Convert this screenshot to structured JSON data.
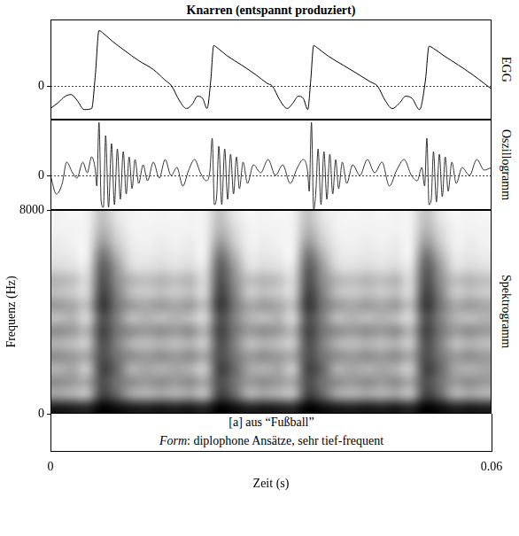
{
  "chart_data": [
    {
      "type": "line",
      "title": "Knarren (entspannt produziert)",
      "panel_label": "EGG",
      "x": [
        0.0,
        0.001,
        0.002,
        0.0028,
        0.0036,
        0.0046,
        0.0056,
        0.0061,
        0.0066,
        0.0072,
        0.0085,
        0.01,
        0.012,
        0.014,
        0.0155,
        0.0165,
        0.0175,
        0.0185,
        0.0193,
        0.02,
        0.0207,
        0.0213,
        0.0218,
        0.0222,
        0.0228,
        0.024,
        0.026,
        0.028,
        0.0295,
        0.0302,
        0.0312,
        0.0322,
        0.033,
        0.0337,
        0.0344,
        0.035,
        0.0354,
        0.0358,
        0.0364,
        0.0378,
        0.0398,
        0.0418,
        0.0435,
        0.0445,
        0.0455,
        0.0465,
        0.0475,
        0.0483,
        0.0492,
        0.0502,
        0.051,
        0.0515,
        0.0521,
        0.0535,
        0.0555,
        0.0575,
        0.059,
        0.06
      ],
      "values": [
        -0.4,
        -0.3,
        -0.18,
        -0.15,
        -0.25,
        -0.42,
        -0.4,
        0.2,
        1.0,
        0.95,
        0.8,
        0.65,
        0.46,
        0.3,
        0.12,
        0.0,
        -0.25,
        -0.4,
        -0.32,
        -0.18,
        -0.22,
        -0.4,
        0.1,
        0.73,
        0.68,
        0.55,
        0.38,
        0.2,
        0.05,
        0.0,
        -0.25,
        -0.4,
        -0.3,
        -0.18,
        -0.22,
        -0.42,
        0.1,
        0.73,
        0.68,
        0.54,
        0.38,
        0.22,
        0.08,
        0.0,
        -0.25,
        -0.4,
        -0.3,
        -0.18,
        -0.22,
        -0.42,
        0.1,
        0.72,
        0.68,
        0.55,
        0.38,
        0.2,
        0.05,
        -0.05
      ],
      "xlim": [
        0,
        0.06
      ],
      "ylim": [
        -0.6,
        1.2
      ],
      "yticks": [
        0
      ],
      "grid": true,
      "tick_labels": "y",
      "color": "#000000",
      "line_style": "solid"
    },
    {
      "type": "line",
      "panel_label": "Oszillogramm",
      "x": [
        0.0,
        0.0008,
        0.0016,
        0.0022,
        0.003,
        0.0036,
        0.0044,
        0.005,
        0.0056,
        0.0061,
        0.0063,
        0.0066,
        0.0069,
        0.0072,
        0.0075,
        0.0079,
        0.0083,
        0.0087,
        0.0091,
        0.0095,
        0.0099,
        0.0103,
        0.0107,
        0.0111,
        0.0115,
        0.012,
        0.0126,
        0.0132,
        0.014,
        0.0148,
        0.0156,
        0.0164,
        0.0172,
        0.018,
        0.0188,
        0.0196,
        0.0204,
        0.0212,
        0.0217,
        0.022,
        0.0223,
        0.0226,
        0.0229,
        0.0233,
        0.0237,
        0.0241,
        0.0245,
        0.0249,
        0.0253,
        0.0257,
        0.0262,
        0.0268,
        0.0276,
        0.0286,
        0.0296,
        0.0306,
        0.0316,
        0.0326,
        0.0336,
        0.0344,
        0.035,
        0.0352,
        0.0355,
        0.0358,
        0.0361,
        0.0364,
        0.0368,
        0.0372,
        0.0376,
        0.038,
        0.0384,
        0.0388,
        0.0392,
        0.0397,
        0.0403,
        0.0411,
        0.0421,
        0.0431,
        0.0441,
        0.0451,
        0.0461,
        0.0471,
        0.0481,
        0.0491,
        0.0499,
        0.0505,
        0.0509,
        0.0512,
        0.0515,
        0.0518,
        0.0521,
        0.0525,
        0.0529,
        0.0533,
        0.0537,
        0.0541,
        0.0546,
        0.0552,
        0.056,
        0.057,
        0.058,
        0.059,
        0.06
      ],
      "values": [
        0.0,
        -0.35,
        -0.15,
        0.25,
        0.05,
        -0.05,
        0.25,
        0.05,
        0.35,
        0.1,
        -0.2,
        1.0,
        -0.5,
        -0.6,
        0.75,
        -0.6,
        0.6,
        -0.55,
        0.5,
        -0.45,
        0.45,
        -0.35,
        0.35,
        -0.25,
        0.3,
        -0.15,
        0.2,
        -0.1,
        0.25,
        -0.05,
        0.3,
        0.0,
        0.15,
        -0.2,
        0.1,
        0.3,
        0.05,
        -0.1,
        0.1,
        0.7,
        -0.55,
        -0.4,
        0.55,
        -0.55,
        0.5,
        -0.45,
        0.4,
        -0.35,
        0.35,
        -0.25,
        0.25,
        -0.15,
        0.2,
        0.05,
        0.3,
        0.0,
        0.2,
        -0.15,
        0.15,
        0.3,
        0.05,
        -0.3,
        1.0,
        -0.65,
        -0.3,
        0.5,
        -0.55,
        0.45,
        -0.45,
        0.4,
        -0.35,
        0.3,
        -0.25,
        0.25,
        -0.15,
        0.2,
        0.0,
        0.3,
        0.05,
        0.25,
        -0.2,
        0.1,
        0.3,
        0.0,
        -0.1,
        0.15,
        -0.2,
        0.7,
        -0.55,
        -0.45,
        0.45,
        -0.5,
        0.4,
        -0.4,
        0.35,
        -0.3,
        0.25,
        -0.15,
        0.15,
        0.0,
        0.3,
        0.1,
        0.15
      ],
      "xlim": [
        0,
        0.06
      ],
      "ylim": [
        -0.65,
        1.05
      ],
      "yticks": [
        0
      ],
      "grid": true,
      "tick_labels": "y",
      "color": "#333333",
      "line_style": "solid"
    },
    {
      "type": "heatmap",
      "panel_label": "Spektrogramm",
      "y_label": "Frequenz (Hz)",
      "x_label": "Zeit (s)",
      "xlim": [
        0,
        0.06
      ],
      "xticks": [
        0,
        0.06
      ],
      "ylim": [
        0,
        8000
      ],
      "yticks": [
        0,
        8000
      ],
      "grid": false,
      "zlim": [
        0,
        1
      ],
      "cells": [
        [
          0.9,
          0.35,
          0.45,
          0.3,
          0.45,
          0.3,
          0.45,
          0.25,
          0.4,
          0.25,
          0.3,
          0.15,
          0.1,
          0.08,
          0.05,
          0.05
        ],
        [
          0.88,
          0.3,
          0.4,
          0.35,
          0.4,
          0.25,
          0.4,
          0.3,
          0.35,
          0.2,
          0.25,
          0.12,
          0.08,
          0.05,
          0.05,
          0.03
        ],
        [
          0.85,
          0.25,
          0.35,
          0.2,
          0.35,
          0.2,
          0.3,
          0.15,
          0.25,
          0.15,
          0.15,
          0.1,
          0.05,
          0.05,
          0.05,
          0.05
        ],
        [
          1.0,
          0.75,
          0.7,
          0.75,
          0.7,
          0.7,
          0.75,
          0.7,
          0.8,
          0.75,
          0.7,
          0.65,
          0.55,
          0.4,
          0.3,
          0.25
        ],
        [
          0.95,
          0.6,
          0.55,
          0.6,
          0.55,
          0.5,
          0.55,
          0.5,
          0.55,
          0.5,
          0.45,
          0.4,
          0.3,
          0.2,
          0.15,
          0.1
        ],
        [
          0.9,
          0.35,
          0.45,
          0.3,
          0.45,
          0.3,
          0.45,
          0.25,
          0.4,
          0.25,
          0.3,
          0.15,
          0.1,
          0.08,
          0.05,
          0.05
        ],
        [
          0.88,
          0.3,
          0.4,
          0.35,
          0.4,
          0.25,
          0.4,
          0.3,
          0.35,
          0.2,
          0.25,
          0.12,
          0.08,
          0.05,
          0.05,
          0.03
        ],
        [
          0.9,
          0.35,
          0.45,
          0.3,
          0.45,
          0.3,
          0.45,
          0.25,
          0.4,
          0.25,
          0.3,
          0.15,
          0.1,
          0.08,
          0.05,
          0.05
        ],
        [
          0.88,
          0.3,
          0.4,
          0.35,
          0.4,
          0.25,
          0.4,
          0.3,
          0.35,
          0.2,
          0.25,
          0.12,
          0.08,
          0.05,
          0.05,
          0.03
        ],
        [
          0.9,
          0.35,
          0.45,
          0.3,
          0.45,
          0.3,
          0.45,
          0.25,
          0.4,
          0.25,
          0.3,
          0.15,
          0.1,
          0.08,
          0.05,
          0.05
        ],
        [
          0.85,
          0.25,
          0.35,
          0.2,
          0.35,
          0.2,
          0.3,
          0.15,
          0.25,
          0.15,
          0.15,
          0.1,
          0.05,
          0.05,
          0.05,
          0.05
        ],
        [
          1.0,
          0.75,
          0.7,
          0.75,
          0.7,
          0.7,
          0.75,
          0.7,
          0.8,
          0.75,
          0.7,
          0.65,
          0.55,
          0.4,
          0.3,
          0.25
        ],
        [
          0.95,
          0.6,
          0.55,
          0.6,
          0.55,
          0.5,
          0.55,
          0.5,
          0.55,
          0.5,
          0.45,
          0.4,
          0.3,
          0.2,
          0.15,
          0.1
        ],
        [
          0.88,
          0.3,
          0.4,
          0.35,
          0.4,
          0.25,
          0.4,
          0.3,
          0.35,
          0.2,
          0.25,
          0.12,
          0.08,
          0.05,
          0.05,
          0.03
        ],
        [
          0.9,
          0.35,
          0.45,
          0.3,
          0.45,
          0.3,
          0.45,
          0.25,
          0.4,
          0.25,
          0.3,
          0.15,
          0.1,
          0.08,
          0.05,
          0.05
        ],
        [
          0.88,
          0.3,
          0.4,
          0.35,
          0.4,
          0.25,
          0.4,
          0.3,
          0.35,
          0.2,
          0.25,
          0.12,
          0.08,
          0.05,
          0.05,
          0.03
        ],
        [
          0.85,
          0.25,
          0.35,
          0.2,
          0.35,
          0.2,
          0.3,
          0.15,
          0.25,
          0.15,
          0.15,
          0.1,
          0.05,
          0.05,
          0.05,
          0.05
        ],
        [
          1.0,
          0.75,
          0.7,
          0.75,
          0.7,
          0.7,
          0.75,
          0.7,
          0.8,
          0.75,
          0.7,
          0.65,
          0.55,
          0.4,
          0.3,
          0.25
        ],
        [
          0.95,
          0.6,
          0.55,
          0.6,
          0.55,
          0.5,
          0.55,
          0.5,
          0.55,
          0.5,
          0.45,
          0.4,
          0.3,
          0.2,
          0.15,
          0.1
        ],
        [
          0.9,
          0.35,
          0.45,
          0.3,
          0.45,
          0.3,
          0.45,
          0.25,
          0.4,
          0.25,
          0.3,
          0.15,
          0.1,
          0.08,
          0.05,
          0.05
        ],
        [
          0.88,
          0.3,
          0.4,
          0.35,
          0.4,
          0.25,
          0.4,
          0.3,
          0.35,
          0.2,
          0.25,
          0.12,
          0.08,
          0.05,
          0.05,
          0.03
        ],
        [
          0.9,
          0.35,
          0.45,
          0.3,
          0.45,
          0.3,
          0.45,
          0.25,
          0.4,
          0.25,
          0.3,
          0.15,
          0.1,
          0.08,
          0.05,
          0.05
        ],
        [
          0.88,
          0.3,
          0.4,
          0.35,
          0.4,
          0.25,
          0.4,
          0.3,
          0.35,
          0.2,
          0.25,
          0.12,
          0.08,
          0.05,
          0.05,
          0.03
        ],
        [
          0.9,
          0.35,
          0.45,
          0.3,
          0.45,
          0.3,
          0.45,
          0.25,
          0.4,
          0.25,
          0.3,
          0.15,
          0.1,
          0.08,
          0.05,
          0.05
        ],
        [
          0.85,
          0.25,
          0.35,
          0.2,
          0.35,
          0.2,
          0.3,
          0.15,
          0.25,
          0.15,
          0.15,
          0.1,
          0.05,
          0.05,
          0.05,
          0.05
        ],
        [
          1.0,
          0.75,
          0.7,
          0.75,
          0.7,
          0.7,
          0.75,
          0.7,
          0.8,
          0.75,
          0.7,
          0.65,
          0.55,
          0.4,
          0.3,
          0.25
        ],
        [
          0.95,
          0.6,
          0.55,
          0.6,
          0.55,
          0.5,
          0.55,
          0.5,
          0.55,
          0.5,
          0.45,
          0.4,
          0.3,
          0.2,
          0.15,
          0.1
        ],
        [
          0.88,
          0.3,
          0.4,
          0.35,
          0.4,
          0.25,
          0.4,
          0.3,
          0.35,
          0.2,
          0.25,
          0.12,
          0.08,
          0.05,
          0.05,
          0.03
        ],
        [
          0.9,
          0.35,
          0.45,
          0.3,
          0.45,
          0.3,
          0.45,
          0.25,
          0.4,
          0.25,
          0.3,
          0.15,
          0.1,
          0.08,
          0.05,
          0.05
        ],
        [
          0.88,
          0.3,
          0.4,
          0.35,
          0.4,
          0.25,
          0.4,
          0.3,
          0.35,
          0.2,
          0.25,
          0.12,
          0.08,
          0.05,
          0.05,
          0.03
        ]
      ],
      "annotations": [
        "[a] aus “Fußball”",
        "Form: diplophone Ansätze, sehr tief-frequent"
      ]
    }
  ]
}
